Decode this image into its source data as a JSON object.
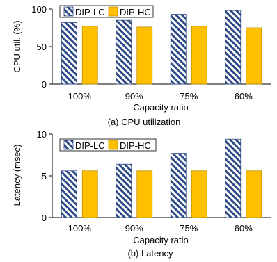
{
  "colors": {
    "lc_stripe": "#2e4a86",
    "hc_fill": "#ffc000",
    "hc_stroke": "#bf8f00",
    "axis": "#000000"
  },
  "chart_data": [
    {
      "type": "bar",
      "caption": "(a) CPU utilization",
      "xlabel": "Capacity ratio",
      "ylabel": "CPU util. (%)",
      "ylim": [
        0,
        100
      ],
      "yticks": [
        0,
        50,
        100
      ],
      "categories": [
        "100%",
        "90%",
        "75%",
        "60%"
      ],
      "legend_position": "top-left",
      "series": [
        {
          "name": "DIP-LC",
          "style": "hatched",
          "values": [
            82,
            85,
            93,
            98
          ]
        },
        {
          "name": "DIP-HC",
          "style": "solid",
          "values": [
            77,
            76,
            77,
            75
          ]
        }
      ]
    },
    {
      "type": "bar",
      "caption": "(b) Latency",
      "xlabel": "Capacity ratio",
      "ylabel": "Latency (msec)",
      "ylim": [
        0,
        10
      ],
      "yticks": [
        0,
        5,
        10
      ],
      "categories": [
        "100%",
        "90%",
        "75%",
        "60%"
      ],
      "legend_position": "top-left",
      "series": [
        {
          "name": "DIP-LC",
          "style": "hatched",
          "values": [
            5.6,
            6.4,
            7.7,
            9.4
          ]
        },
        {
          "name": "DIP-HC",
          "style": "solid",
          "values": [
            5.6,
            5.6,
            5.6,
            5.6
          ]
        }
      ]
    }
  ]
}
